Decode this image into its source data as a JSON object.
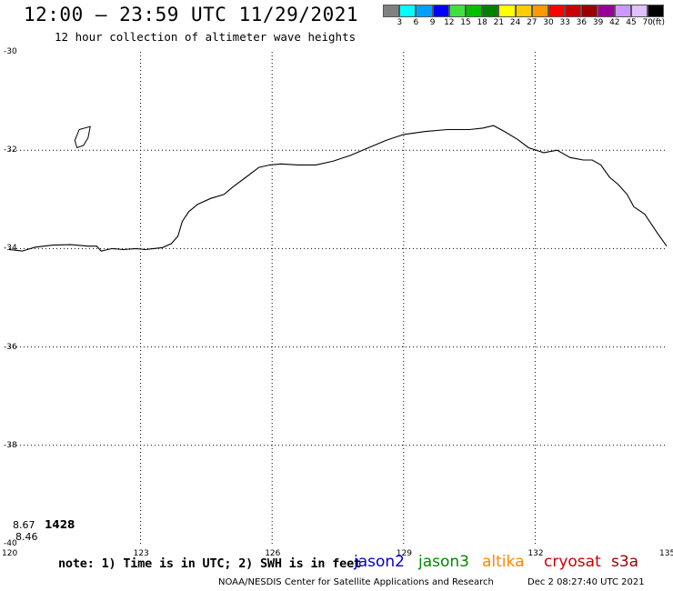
{
  "header": {
    "title": "12:00 – 23:59 UTC 11/29/2021",
    "subtitle": "12 hour collection of altimeter wave heights"
  },
  "legend": {
    "unit": "(ft)",
    "labels": [
      "3",
      "6",
      "9",
      "12",
      "15",
      "18",
      "21",
      "24",
      "27",
      "30",
      "33",
      "36",
      "39",
      "42",
      "45",
      "70"
    ],
    "colors": [
      "#808080",
      "#00ffff",
      "#00a0ff",
      "#0000ff",
      "#40e040",
      "#00c000",
      "#008000",
      "#ffff00",
      "#ffcc00",
      "#ff9900",
      "#ff0000",
      "#cc0000",
      "#990000",
      "#990099",
      "#cc99ff",
      "#e0c0ff",
      "#000000"
    ]
  },
  "map": {
    "lon_range": [
      120,
      135
    ],
    "lat_range": [
      -40,
      -30
    ],
    "lon_labels": [
      {
        "value": 120,
        "text": "120"
      },
      {
        "value": 123,
        "text": "123"
      },
      {
        "value": 126,
        "text": "126"
      },
      {
        "value": 129,
        "text": "129"
      },
      {
        "value": 132,
        "text": "132"
      },
      {
        "value": 135,
        "text": "135"
      }
    ],
    "lat_labels": [
      {
        "value": -30,
        "text": "-30"
      },
      {
        "value": -32,
        "text": "-32"
      },
      {
        "value": -34,
        "text": "-34"
      },
      {
        "value": -36,
        "text": "-36"
      },
      {
        "value": -38,
        "text": "-38"
      },
      {
        "value": -40,
        "text": "-40"
      }
    ],
    "grid_lon": [
      123,
      126,
      129,
      132
    ],
    "grid_lat": [
      -32,
      -34,
      -36,
      -38
    ],
    "coastline_color": "#000000",
    "values": [
      {
        "text": "8.67",
        "color": "#00a0c0"
      },
      {
        "text": "1428",
        "color": "#800000"
      },
      {
        "text": "8.46",
        "color": "#00a0c0"
      }
    ]
  },
  "footer": {
    "note": "note: 1) Time is in UTC; 2) SWH is in feet",
    "satellites": [
      {
        "name": "jason2",
        "color": "#0000cc"
      },
      {
        "name": "jason3",
        "color": "#008800"
      },
      {
        "name": "altika",
        "color": "#ff8800"
      },
      {
        "name": "cryosat",
        "color": "#cc0000"
      },
      {
        "name": "s3a",
        "color": "#990000"
      }
    ],
    "credit": "NOAA/NESDIS Center for Satellite Applications and Research",
    "timestamp": "Dec  2 08:27:40 UTC 2021"
  }
}
